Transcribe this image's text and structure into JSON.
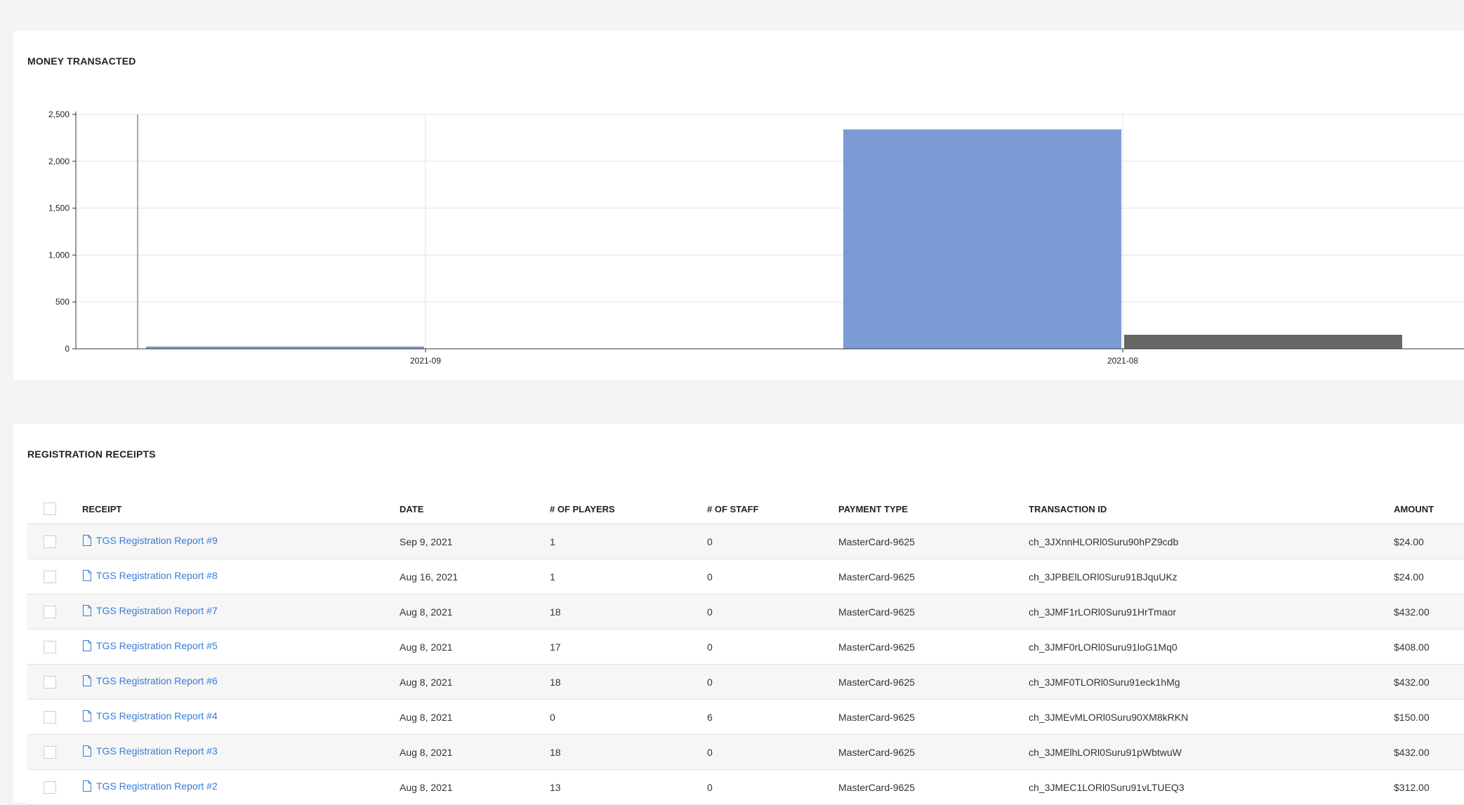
{
  "chart_section": {
    "title": "MONEY TRANSACTED"
  },
  "chart_data": {
    "type": "bar",
    "title": "MONEY TRANSACTED",
    "xlabel": "",
    "ylabel": "",
    "categories": [
      "2021-09",
      "2021-08"
    ],
    "series": [
      {
        "values": [
          24,
          2340
        ],
        "color": "#7b9bd6"
      },
      {
        "values": [
          0,
          150
        ],
        "color": "#676767"
      }
    ],
    "ylim": [
      0,
      2500
    ],
    "yticks": [
      0,
      500,
      1000,
      1500,
      2000,
      2500
    ],
    "ytick_labels": [
      "0",
      "500",
      "1,000",
      "1,500",
      "2,000",
      "2,500"
    ],
    "grid": true
  },
  "receipts_section": {
    "title": "REGISTRATION RECEIPTS",
    "columns": [
      "RECEIPT",
      "DATE",
      "# OF PLAYERS",
      "# OF STAFF",
      "PAYMENT TYPE",
      "TRANSACTION ID",
      "AMOUNT"
    ],
    "rows": [
      {
        "receipt": "TGS Registration Report #9",
        "date": "Sep 9, 2021",
        "players": "1",
        "staff": "0",
        "payment": "MasterCard-9625",
        "txn": "ch_3JXnnHLORl0Suru90hPZ9cdb",
        "amount": "$24.00"
      },
      {
        "receipt": "TGS Registration Report #8",
        "date": "Aug 16, 2021",
        "players": "1",
        "staff": "0",
        "payment": "MasterCard-9625",
        "txn": "ch_3JPBElLORl0Suru91BJquUKz",
        "amount": "$24.00"
      },
      {
        "receipt": "TGS Registration Report #7",
        "date": "Aug 8, 2021",
        "players": "18",
        "staff": "0",
        "payment": "MasterCard-9625",
        "txn": "ch_3JMF1rLORl0Suru91HrTmaor",
        "amount": "$432.00"
      },
      {
        "receipt": "TGS Registration Report #5",
        "date": "Aug 8, 2021",
        "players": "17",
        "staff": "0",
        "payment": "MasterCard-9625",
        "txn": "ch_3JMF0rLORl0Suru91loG1Mq0",
        "amount": "$408.00"
      },
      {
        "receipt": "TGS Registration Report #6",
        "date": "Aug 8, 2021",
        "players": "18",
        "staff": "0",
        "payment": "MasterCard-9625",
        "txn": "ch_3JMF0TLORl0Suru91eck1hMg",
        "amount": "$432.00"
      },
      {
        "receipt": "TGS Registration Report #4",
        "date": "Aug 8, 2021",
        "players": "0",
        "staff": "6",
        "payment": "MasterCard-9625",
        "txn": "ch_3JMEvMLORl0Suru90XM8kRKN",
        "amount": "$150.00"
      },
      {
        "receipt": "TGS Registration Report #3",
        "date": "Aug 8, 2021",
        "players": "18",
        "staff": "0",
        "payment": "MasterCard-9625",
        "txn": "ch_3JMElhLORl0Suru91pWbtwuW",
        "amount": "$432.00"
      },
      {
        "receipt": "TGS Registration Report #2",
        "date": "Aug 8, 2021",
        "players": "13",
        "staff": "0",
        "payment": "MasterCard-9625",
        "txn": "ch_3JMEC1LORl0Suru91vLTUEQ3",
        "amount": "$312.00"
      }
    ]
  },
  "icons": {
    "receipt": "document-icon",
    "row_select": "checkbox-icon"
  }
}
